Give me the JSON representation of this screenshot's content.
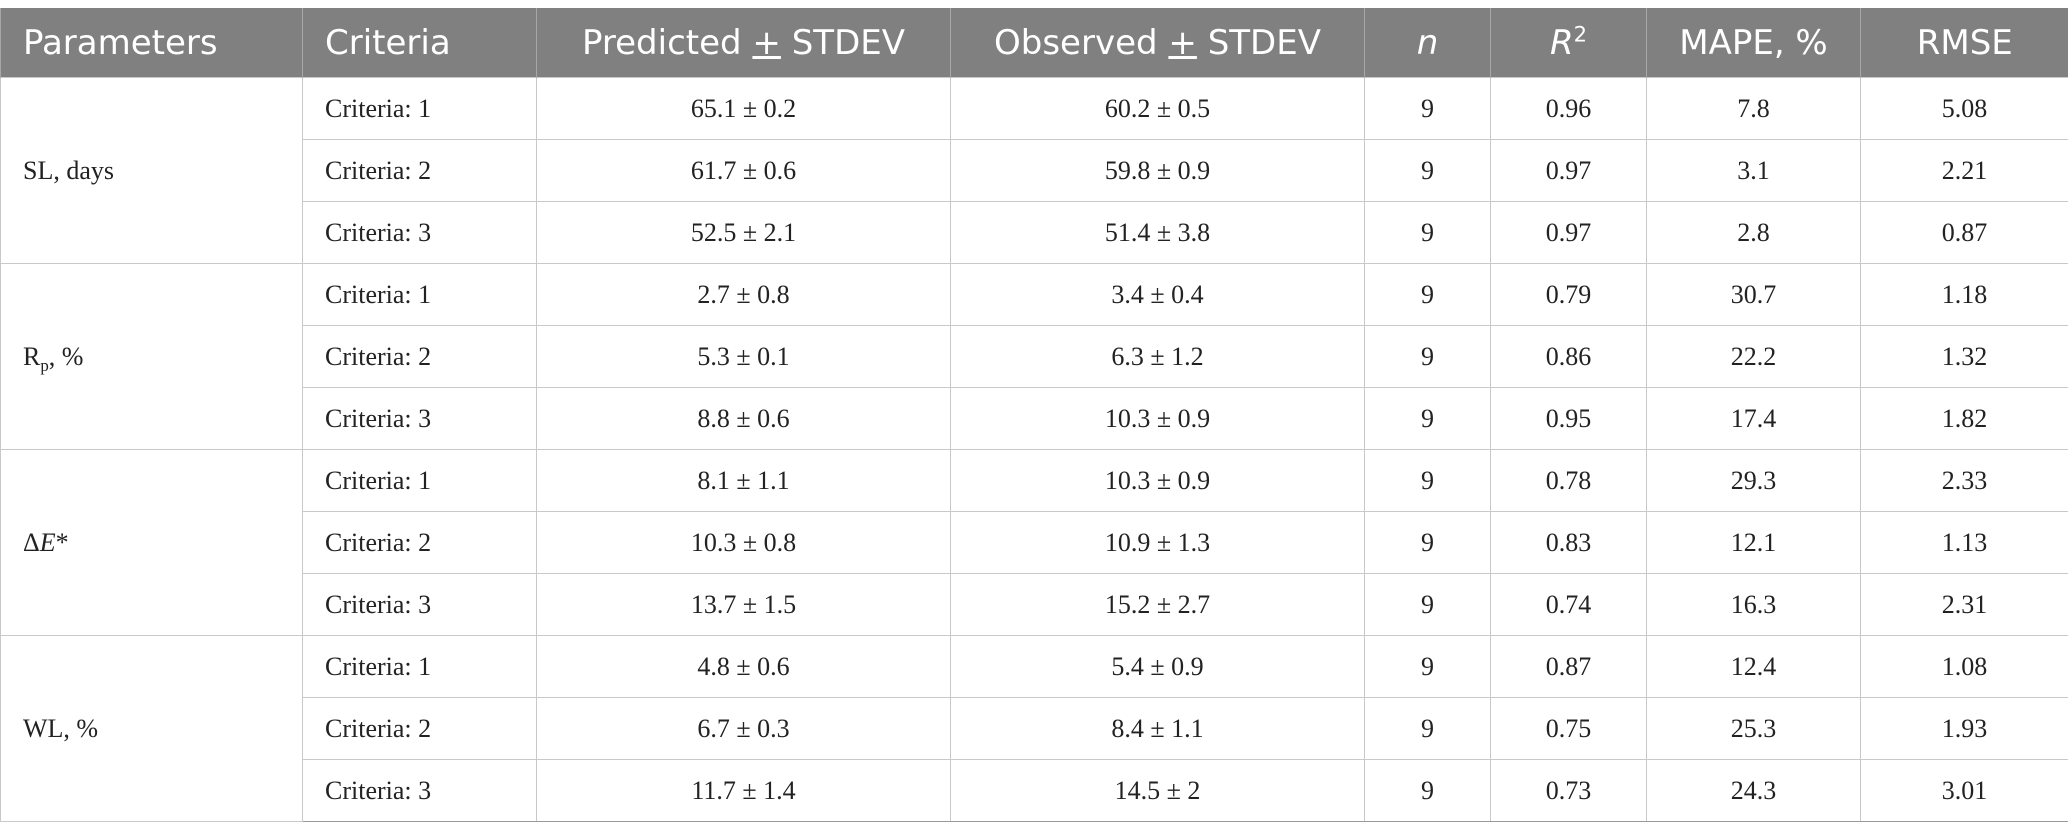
{
  "table": {
    "headers": {
      "parameters": "Parameters",
      "criteria": "Criteria",
      "predicted_pre": "Predicted ",
      "predicted_pm": "+",
      "predicted_post": " STDEV",
      "observed_pre": "Observed ",
      "observed_pm": "+",
      "observed_post": " STDEV",
      "n": "n",
      "r2_base": "R",
      "r2_sup": "2",
      "mape": "MAPE, %",
      "rmse": "RMSE"
    },
    "groups": [
      {
        "parameter": {
          "main": "SL, days",
          "sub": "",
          "tail": ""
        },
        "rows": [
          {
            "criteria": "Criteria: 1",
            "predicted": "65.1 ± 0.2",
            "observed": "60.2 ± 0.5",
            "n": "9",
            "r2": "0.96",
            "mape": "7.8",
            "rmse": "5.08"
          },
          {
            "criteria": "Criteria: 2",
            "predicted": "61.7 ± 0.6",
            "observed": "59.8 ± 0.9",
            "n": "9",
            "r2": "0.97",
            "mape": "3.1",
            "rmse": "2.21"
          },
          {
            "criteria": "Criteria: 3",
            "predicted": "52.5 ± 2.1",
            "observed": "51.4 ± 3.8",
            "n": "9",
            "r2": "0.97",
            "mape": "2.8",
            "rmse": "0.87"
          }
        ]
      },
      {
        "parameter": {
          "main": "R",
          "sub": "p",
          "tail": ", %"
        },
        "rows": [
          {
            "criteria": "Criteria: 1",
            "predicted": "2.7 ± 0.8",
            "observed": "3.4 ± 0.4",
            "n": "9",
            "r2": "0.79",
            "mape": "30.7",
            "rmse": "1.18"
          },
          {
            "criteria": "Criteria: 2",
            "predicted": "5.3 ± 0.1",
            "observed": "6.3 ± 1.2",
            "n": "9",
            "r2": "0.86",
            "mape": "22.2",
            "rmse": "1.32"
          },
          {
            "criteria": "Criteria: 3",
            "predicted": "8.8 ± 0.6",
            "observed": "10.3 ± 0.9",
            "n": "9",
            "r2": "0.95",
            "mape": "17.4",
            "rmse": "1.82"
          }
        ]
      },
      {
        "parameter": {
          "main": "Δ",
          "italic": "E",
          "tail": "*"
        },
        "rows": [
          {
            "criteria": "Criteria: 1",
            "predicted": "8.1 ± 1.1",
            "observed": "10.3 ± 0.9",
            "n": "9",
            "r2": "0.78",
            "mape": "29.3",
            "rmse": "2.33"
          },
          {
            "criteria": "Criteria: 2",
            "predicted": "10.3 ± 0.8",
            "observed": "10.9 ± 1.3",
            "n": "9",
            "r2": "0.83",
            "mape": "12.1",
            "rmse": "1.13"
          },
          {
            "criteria": "Criteria: 3",
            "predicted": "13.7 ± 1.5",
            "observed": "15.2 ± 2.7",
            "n": "9",
            "r2": "0.74",
            "mape": "16.3",
            "rmse": "2.31"
          }
        ]
      },
      {
        "parameter": {
          "main": "WL, %",
          "sub": "",
          "tail": ""
        },
        "rows": [
          {
            "criteria": "Criteria: 1",
            "predicted": "4.8 ± 0.6",
            "observed": "5.4 ± 0.9",
            "n": "9",
            "r2": "0.87",
            "mape": "12.4",
            "rmse": "1.08"
          },
          {
            "criteria": "Criteria: 2",
            "predicted": "6.7 ± 0.3",
            "observed": "8.4 ± 1.1",
            "n": "9",
            "r2": "0.75",
            "mape": "25.3",
            "rmse": "1.93"
          },
          {
            "criteria": "Criteria: 3",
            "predicted": "11.7 ± 1.4",
            "observed": "14.5 ± 2",
            "n": "9",
            "r2": "0.73",
            "mape": "24.3",
            "rmse": "3.01"
          }
        ]
      }
    ]
  }
}
